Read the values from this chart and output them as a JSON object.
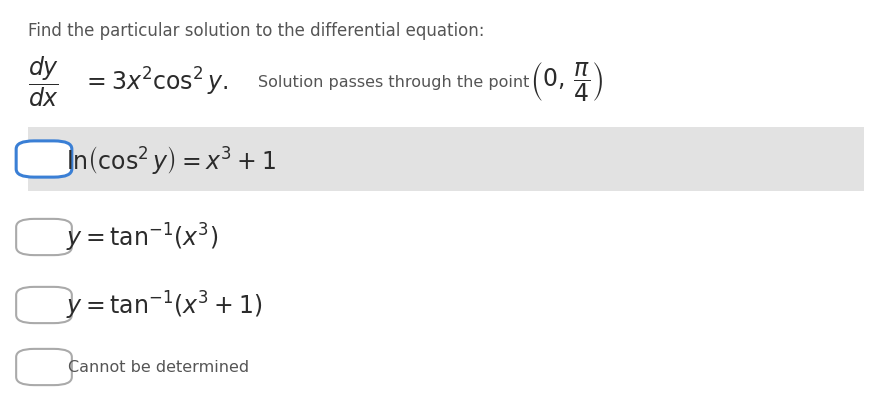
{
  "background_color": "#ffffff",
  "fig_width": 8.92,
  "fig_height": 4.06,
  "dpi": 100,
  "prompt_text": "Find the particular solution to the differential equation:",
  "prompt_color": "#555555",
  "prompt_fontsize": 12,
  "equation_color": "#2b2b2b",
  "option_color": "#2b2b2b",
  "option1_bg": "#e2e2e2",
  "checkbox_blue": "#3a7fd5",
  "checkbox_gray": "#aaaaaa",
  "eq_fontsize": 17,
  "opt_fontsize": 17,
  "small_fontsize": 11.5
}
